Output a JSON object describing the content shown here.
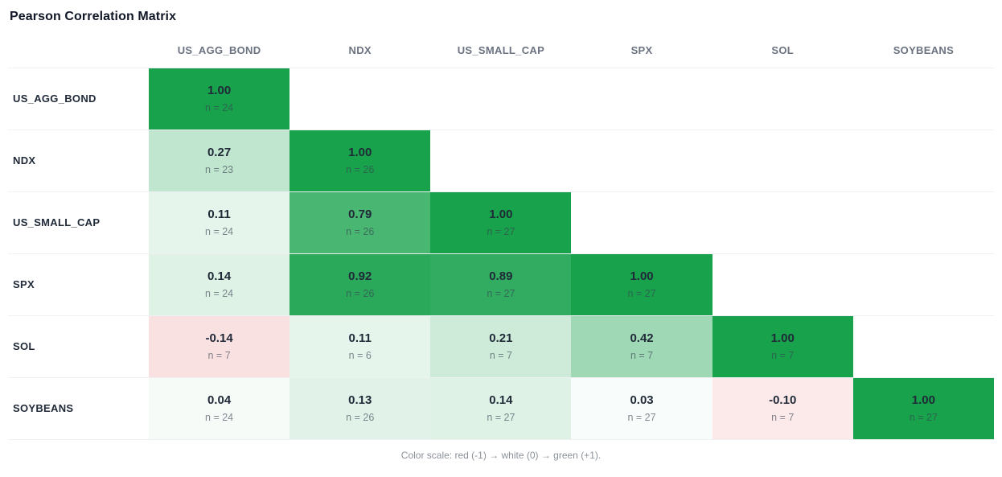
{
  "header": {
    "title": "Pearson Correlation Matrix"
  },
  "footer": {
    "caption": "Color scale: red (-1) → white (0) → green (+1)."
  },
  "colors": {
    "scale_positive": "#18a24c",
    "scale_negative": "#dc2626",
    "scale_neutral": "#ffffff",
    "value_text": "#1f2937",
    "header_text": "#6b7280"
  },
  "n_prefix": "n = ",
  "chart_data": {
    "type": "heatmap",
    "title": "Pearson Correlation Matrix",
    "labels": [
      "US_AGG_BOND",
      "NDX",
      "US_SMALL_CAP",
      "SPX",
      "SOL",
      "SOYBEANS"
    ],
    "legend": "Color scale: red (-1) → white (0) → green (+1).",
    "value_range": [
      -1,
      1
    ],
    "rows": [
      {
        "label": "US_AGG_BOND",
        "values": [
          {
            "v": "1.00",
            "n": 24
          }
        ]
      },
      {
        "label": "NDX",
        "values": [
          {
            "v": "0.27",
            "n": 23
          },
          {
            "v": "1.00",
            "n": 26
          }
        ]
      },
      {
        "label": "US_SMALL_CAP",
        "values": [
          {
            "v": "0.11",
            "n": 24
          },
          {
            "v": "0.79",
            "n": 26
          },
          {
            "v": "1.00",
            "n": 27
          }
        ]
      },
      {
        "label": "SPX",
        "values": [
          {
            "v": "0.14",
            "n": 24
          },
          {
            "v": "0.92",
            "n": 26
          },
          {
            "v": "0.89",
            "n": 27
          },
          {
            "v": "1.00",
            "n": 27
          }
        ]
      },
      {
        "label": "SOL",
        "values": [
          {
            "v": "-0.14",
            "n": 7
          },
          {
            "v": "0.11",
            "n": 6
          },
          {
            "v": "0.21",
            "n": 7
          },
          {
            "v": "0.42",
            "n": 7
          },
          {
            "v": "1.00",
            "n": 7
          }
        ]
      },
      {
        "label": "SOYBEANS",
        "values": [
          {
            "v": "0.04",
            "n": 24
          },
          {
            "v": "0.13",
            "n": 26
          },
          {
            "v": "0.14",
            "n": 27
          },
          {
            "v": "0.03",
            "n": 27
          },
          {
            "v": "-0.10",
            "n": 7
          },
          {
            "v": "1.00",
            "n": 27
          }
        ]
      }
    ]
  }
}
